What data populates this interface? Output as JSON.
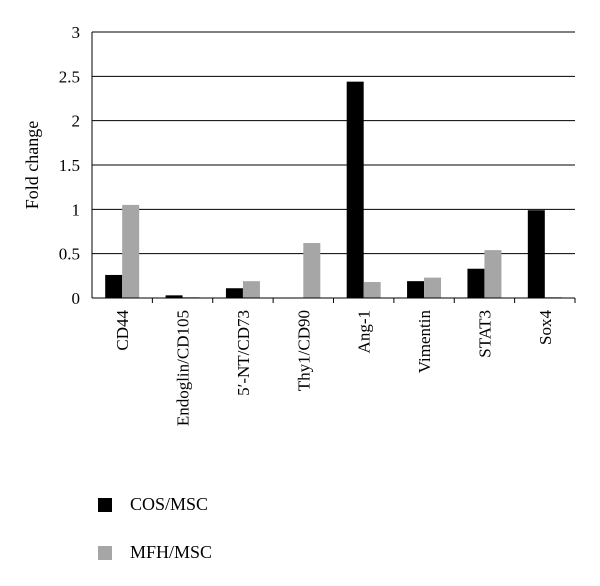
{
  "chart_data": {
    "type": "bar",
    "ylabel": "Fold change",
    "ylim": [
      0,
      3
    ],
    "yticks": [
      0,
      0.5,
      1,
      1.5,
      2,
      2.5,
      3
    ],
    "ytick_labels": [
      "0",
      "0.5",
      "1",
      "1.5",
      "2",
      "2.5",
      "3"
    ],
    "categories": [
      "CD44",
      "Endoglin/CD105",
      "5′-NT/CD73",
      "Thy1/CD90",
      "Ang-1",
      "Vimentin",
      "STAT3",
      "Sox4"
    ],
    "series": [
      {
        "name": "COS/MSC",
        "color": "#000000",
        "values": [
          0.26,
          0.03,
          0.11,
          0.0,
          2.44,
          0.19,
          0.33,
          0.99
        ]
      },
      {
        "name": "MFH/MSC",
        "color": "#a6a6a6",
        "values": [
          1.05,
          0.01,
          0.19,
          0.62,
          0.18,
          0.23,
          0.54,
          0.01
        ]
      }
    ],
    "grid": true,
    "legend_position": "bottom-left"
  }
}
